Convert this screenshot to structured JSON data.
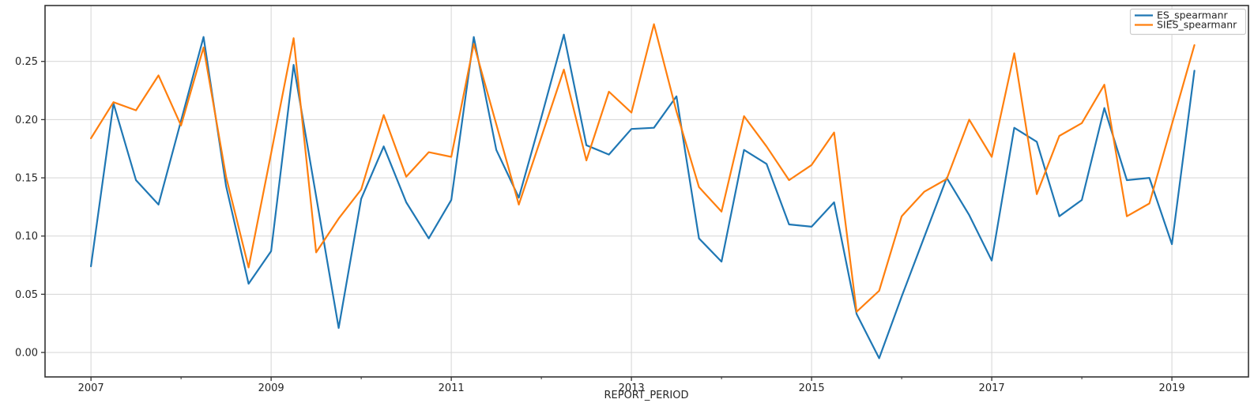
{
  "chart_data": {
    "type": "line",
    "title": "",
    "xlabel": "REPORT_PERIOD",
    "ylabel": "",
    "grid": true,
    "legend_position": "upper right",
    "xlim": [
      2006.49,
      2019.85
    ],
    "ylim": [
      -0.021,
      0.298
    ],
    "x_tick_values": [
      2007,
      2009,
      2011,
      2013,
      2015,
      2017,
      2019
    ],
    "x_tick_labels": [
      "2007",
      "2009",
      "2011",
      "2013",
      "2015",
      "2017",
      "2019"
    ],
    "x_minor_tick_values": [
      2008,
      2010,
      2012,
      2014,
      2016,
      2018
    ],
    "y_tick_values": [
      0.0,
      0.05,
      0.1,
      0.15,
      0.2,
      0.25
    ],
    "y_tick_labels": [
      "0.00",
      "0.05",
      "0.10",
      "0.15",
      "0.20",
      "0.25"
    ],
    "x_period_labels": [
      "2007Q1",
      "2007Q2",
      "2007Q3",
      "2007Q4",
      "2008Q1",
      "2008Q2",
      "2008Q3",
      "2008Q4",
      "2009Q1",
      "2009Q2",
      "2009Q3",
      "2009Q4",
      "2010Q1",
      "2010Q2",
      "2010Q3",
      "2010Q4",
      "2011Q1",
      "2011Q2",
      "2011Q3",
      "2011Q4",
      "2012Q1",
      "2012Q2",
      "2012Q3",
      "2012Q4",
      "2013Q1",
      "2013Q2",
      "2013Q3",
      "2013Q4",
      "2014Q1",
      "2014Q2",
      "2014Q3",
      "2014Q4",
      "2015Q1",
      "2015Q2",
      "2015Q3",
      "2015Q4",
      "2016Q1",
      "2016Q2",
      "2016Q3",
      "2016Q4",
      "2017Q1",
      "2017Q2",
      "2017Q3",
      "2017Q4",
      "2018Q1",
      "2018Q2",
      "2018Q3",
      "2018Q4",
      "2019Q1",
      "2019Q2"
    ],
    "x": [
      2007.0,
      2007.25,
      2007.5,
      2007.75,
      2008.0,
      2008.25,
      2008.5,
      2008.75,
      2009.0,
      2009.25,
      2009.5,
      2009.75,
      2010.0,
      2010.25,
      2010.5,
      2010.75,
      2011.0,
      2011.25,
      2011.5,
      2011.75,
      2012.0,
      2012.25,
      2012.5,
      2012.75,
      2013.0,
      2013.25,
      2013.5,
      2013.75,
      2014.0,
      2014.25,
      2014.5,
      2014.75,
      2015.0,
      2015.25,
      2015.5,
      2015.75,
      2016.0,
      2016.25,
      2016.5,
      2016.75,
      2017.0,
      2017.25,
      2017.5,
      2017.75,
      2018.0,
      2018.25,
      2018.5,
      2018.75,
      2019.0,
      2019.25
    ],
    "series": [
      {
        "name": "ES_spearmanr",
        "color": "#1f77b4",
        "values": [
          0.074,
          0.214,
          0.148,
          0.127,
          0.199,
          0.271,
          0.143,
          0.059,
          0.087,
          0.247,
          0.134,
          0.021,
          0.132,
          0.177,
          0.129,
          0.098,
          0.131,
          0.271,
          0.174,
          0.133,
          0.202,
          0.273,
          0.178,
          0.17,
          0.192,
          0.193,
          0.22,
          0.098,
          0.078,
          0.174,
          0.162,
          0.11,
          0.108,
          0.129,
          0.033,
          -0.005,
          0.048,
          0.099,
          0.15,
          0.118,
          0.079,
          0.193,
          0.181,
          0.117,
          0.131,
          0.21,
          0.148,
          0.15,
          0.093,
          0.242
        ]
      },
      {
        "name": "SIES_spearmanr",
        "color": "#ff7f0e",
        "values": [
          0.184,
          0.215,
          0.208,
          0.238,
          0.195,
          0.262,
          0.151,
          0.073,
          0.171,
          0.27,
          0.086,
          0.115,
          0.14,
          0.204,
          0.151,
          0.172,
          0.168,
          0.265,
          0.196,
          0.127,
          0.185,
          0.243,
          0.165,
          0.224,
          0.206,
          0.282,
          0.207,
          0.142,
          0.121,
          0.203,
          0.177,
          0.148,
          0.161,
          0.189,
          0.035,
          0.053,
          0.117,
          0.138,
          0.149,
          0.2,
          0.168,
          0.257,
          0.136,
          0.186,
          0.197,
          0.23,
          0.117,
          0.128,
          0.196,
          0.264
        ]
      }
    ],
    "colors": {
      "grid": "#d9d9d9",
      "spine": "#333333",
      "tick": "#333333",
      "background": "#ffffff",
      "legend_border": "#cccccc"
    }
  }
}
